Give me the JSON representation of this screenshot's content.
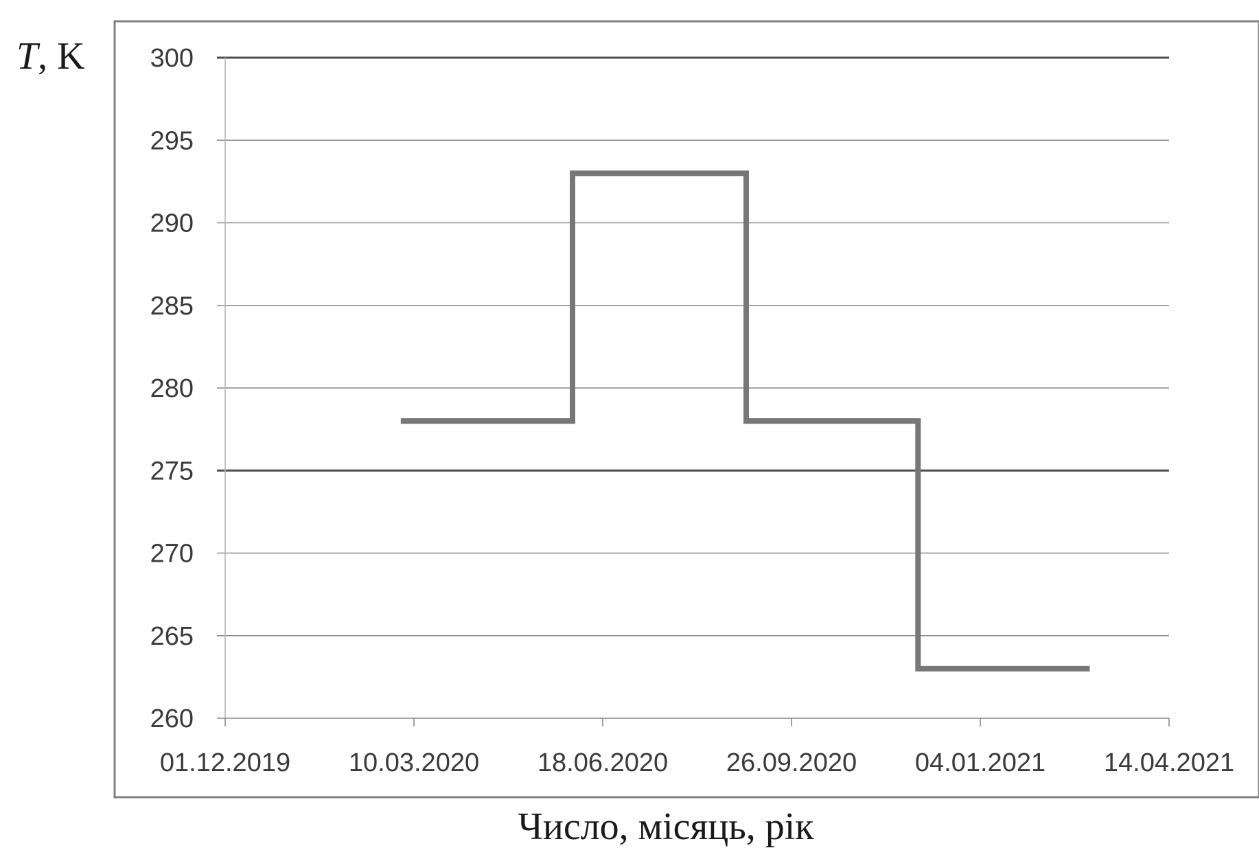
{
  "chart_data": {
    "type": "line",
    "step": true,
    "title": "",
    "ylabel": {
      "var": "T",
      "unit": ", K"
    },
    "xlabel": "Число, місяць, рік",
    "ylim": [
      260,
      300
    ],
    "yticks": [
      260,
      265,
      270,
      275,
      280,
      285,
      290,
      295,
      300
    ],
    "xlim": [
      "2019-12-01",
      "2021-04-14"
    ],
    "xticks": [
      {
        "date": "2019-12-01",
        "label": "01.12.2019"
      },
      {
        "date": "2020-03-10",
        "label": "10.03.2020"
      },
      {
        "date": "2020-06-18",
        "label": "18.06.2020"
      },
      {
        "date": "2020-09-26",
        "label": "26.09.2020"
      },
      {
        "date": "2021-01-04",
        "label": "04.01.2021"
      },
      {
        "date": "2021-04-14",
        "label": "14.04.2021"
      }
    ],
    "grid": {
      "horizontal": true,
      "vertical": false
    },
    "series": [
      {
        "color": "#777777",
        "points": [
          {
            "x": "2020-03-03",
            "y": 278
          },
          {
            "x": "2020-06-02",
            "y": 278
          },
          {
            "x": "2020-06-02",
            "y": 293
          },
          {
            "x": "2020-09-02",
            "y": 293
          },
          {
            "x": "2020-09-02",
            "y": 278
          },
          {
            "x": "2020-12-02",
            "y": 278
          },
          {
            "x": "2020-12-02",
            "y": 263
          },
          {
            "x": "2021-03-03",
            "y": 263
          }
        ]
      }
    ]
  }
}
